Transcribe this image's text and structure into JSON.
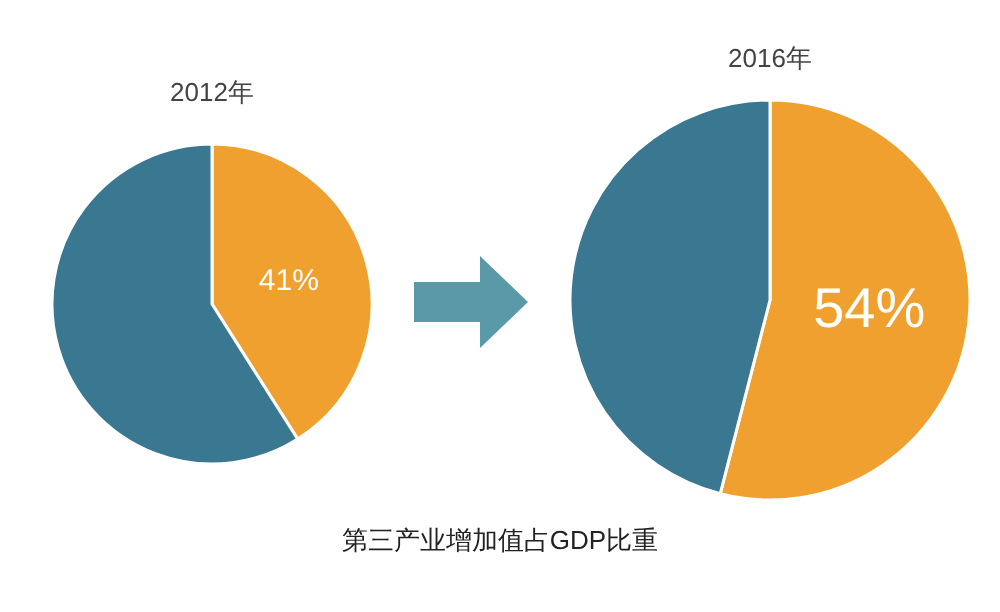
{
  "chart_data": [
    {
      "type": "pie",
      "title": "2012年",
      "categories": [
        null,
        null
      ],
      "values": [
        41,
        59
      ],
      "colors": [
        "#f0a02e",
        "#3a7891"
      ],
      "value_labels": [
        "41%",
        null
      ],
      "annotations": [
        "第三产业增加值占GDP比重"
      ]
    },
    {
      "type": "pie",
      "title": "2016年",
      "categories": [
        null,
        null
      ],
      "values": [
        54,
        46
      ],
      "colors": [
        "#f0a02e",
        "#3a7891"
      ],
      "value_labels": [
        "54%",
        null
      ]
    }
  ]
}
